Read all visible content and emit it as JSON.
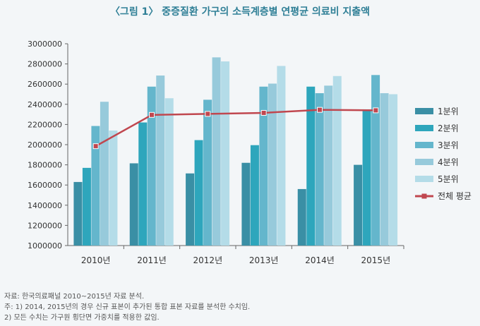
{
  "title": "〈그림 1〉 중증질환 가구의 소득계층별 연평균 의료비 지출액",
  "notes": [
    "자료: 한국의료패널 2010~2015년 자료 분석.",
    "주: 1) 2014, 2015년의 경우 신규 표본이 추가된 통합 표본 자료를 분석한 수치임.",
    "     2) 모든 수치는 가구원 횡단면 가중치를 적용한 값임."
  ],
  "colors": {
    "q1": "#3a8fa5",
    "q2": "#2ea6bc",
    "q3": "#64b6cc",
    "q4": "#97cadb",
    "q5": "#b4dce8",
    "avg": "#c0474f"
  },
  "chart_data": {
    "type": "bar",
    "categories": [
      "2010년",
      "2011년",
      "2012년",
      "2013년",
      "2014년",
      "2015년"
    ],
    "ylim": [
      1000000,
      3000000
    ],
    "yticks": [
      1000000,
      1200000,
      1400000,
      1600000,
      1800000,
      2000000,
      2200000,
      2400000,
      2600000,
      2800000,
      3000000
    ],
    "ytick_labels": [
      "1000000",
      "1200000",
      "1400000",
      "1600000",
      "1800000",
      "2000000",
      "2200000",
      "2400000",
      "2600000",
      "2800000",
      "3000000"
    ],
    "series": [
      {
        "name": "1분위",
        "values": [
          1630000,
          1815000,
          1715000,
          1820000,
          1560000,
          1800000
        ]
      },
      {
        "name": "2분위",
        "values": [
          1770000,
          2220000,
          2045000,
          1995000,
          2575000,
          2350000
        ]
      },
      {
        "name": "3분위",
        "values": [
          2185000,
          2575000,
          2445000,
          2575000,
          2510000,
          2690000
        ]
      },
      {
        "name": "4분위",
        "values": [
          2425000,
          2685000,
          2865000,
          2605000,
          2585000,
          2510000
        ]
      },
      {
        "name": "5분위",
        "values": [
          2140000,
          2460000,
          2825000,
          2780000,
          2680000,
          2500000
        ]
      }
    ],
    "line": {
      "name": "전체 평균",
      "values": [
        1985000,
        2295000,
        2305000,
        2315000,
        2345000,
        2340000
      ]
    },
    "legend_position": "right",
    "grid": false
  }
}
